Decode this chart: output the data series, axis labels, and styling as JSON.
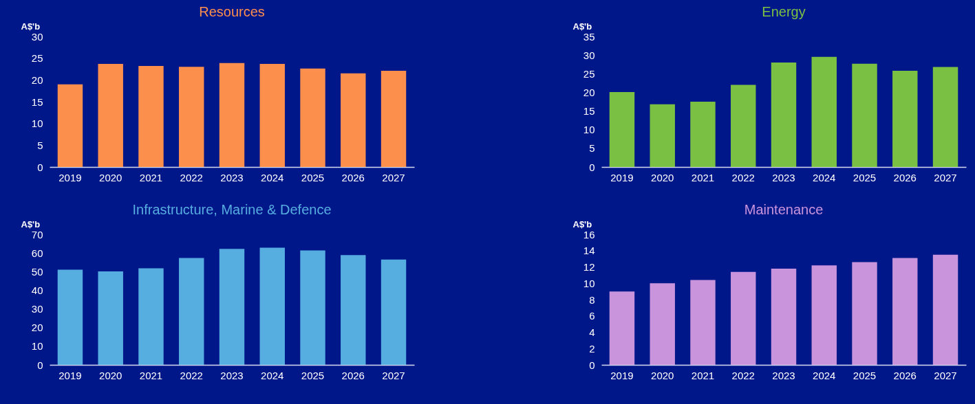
{
  "chart_data": [
    {
      "type": "bar",
      "title": "Resources",
      "ylabel": "A$'b",
      "categories": [
        "2019",
        "2020",
        "2021",
        "2022",
        "2023",
        "2024",
        "2025",
        "2026",
        "2027"
      ],
      "values": [
        19.0,
        23.7,
        23.2,
        23.0,
        23.9,
        23.7,
        22.6,
        21.5,
        22.1
      ],
      "color": "#fd8f4d",
      "ylim": [
        0,
        30
      ],
      "yticks": [
        0,
        5,
        10,
        15,
        20,
        25,
        30
      ]
    },
    {
      "type": "bar",
      "title": "Energy",
      "ylabel": "A$'b",
      "categories": [
        "2019",
        "2020",
        "2021",
        "2022",
        "2023",
        "2024",
        "2025",
        "2026",
        "2027"
      ],
      "values": [
        20.1,
        16.8,
        17.5,
        22.0,
        28.0,
        29.5,
        27.7,
        25.8,
        26.8
      ],
      "color": "#7ac143",
      "ylim": [
        0,
        35
      ],
      "yticks": [
        0,
        5,
        10,
        15,
        20,
        25,
        30,
        35
      ]
    },
    {
      "type": "bar",
      "title": "Infrastructure, Marine & Defence",
      "ylabel": "A$'b",
      "categories": [
        "2019",
        "2020",
        "2021",
        "2022",
        "2023",
        "2024",
        "2025",
        "2026",
        "2027"
      ],
      "values": [
        51.0,
        50.1,
        51.8,
        57.3,
        62.2,
        62.8,
        61.3,
        58.9,
        56.5
      ],
      "color": "#56ade0",
      "ylim": [
        0,
        70
      ],
      "yticks": [
        0,
        10,
        20,
        30,
        40,
        50,
        60,
        70
      ]
    },
    {
      "type": "bar",
      "title": "Maintenance",
      "ylabel": "A$'b",
      "categories": [
        "2019",
        "2020",
        "2021",
        "2022",
        "2023",
        "2024",
        "2025",
        "2026",
        "2027"
      ],
      "values": [
        9.0,
        10.0,
        10.4,
        11.4,
        11.8,
        12.2,
        12.6,
        13.1,
        13.5
      ],
      "color": "#c994dc",
      "ylim": [
        0,
        16
      ],
      "yticks": [
        0,
        2,
        4,
        6,
        8,
        10,
        12,
        14,
        16
      ]
    }
  ]
}
